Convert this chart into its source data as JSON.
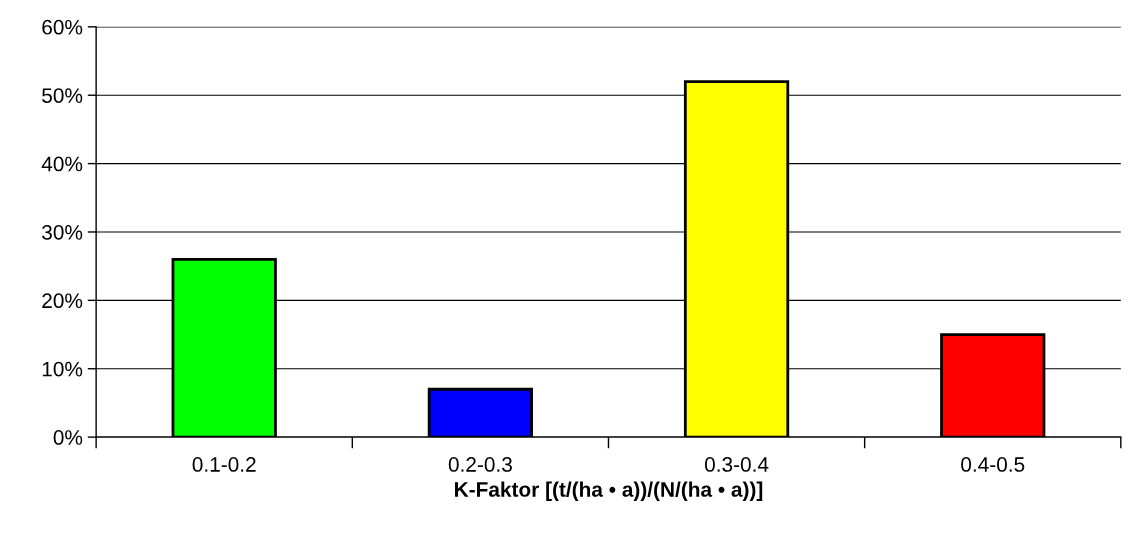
{
  "chart_data": {
    "type": "bar",
    "xlabel": "K-Faktor [(t/(ha • a))/(N/(ha • a))]",
    "categories": [
      "0.1-0.2",
      "0.2-0.3",
      "0.3-0.4",
      "0.4-0.5"
    ],
    "values": [
      26,
      7,
      52,
      15
    ],
    "colors": [
      "#00ff00",
      "#0000ff",
      "#ffff00",
      "#ff0000"
    ],
    "ylim": [
      0,
      60
    ],
    "yticks": [
      {
        "value": 0,
        "label": "0%"
      },
      {
        "value": 10,
        "label": "10%"
      },
      {
        "value": 20,
        "label": "20%"
      },
      {
        "value": 30,
        "label": "30%"
      },
      {
        "value": 40,
        "label": "40%"
      },
      {
        "value": 50,
        "label": "50%"
      },
      {
        "value": 60,
        "label": "60%"
      }
    ],
    "grid": "y",
    "legend": false
  }
}
